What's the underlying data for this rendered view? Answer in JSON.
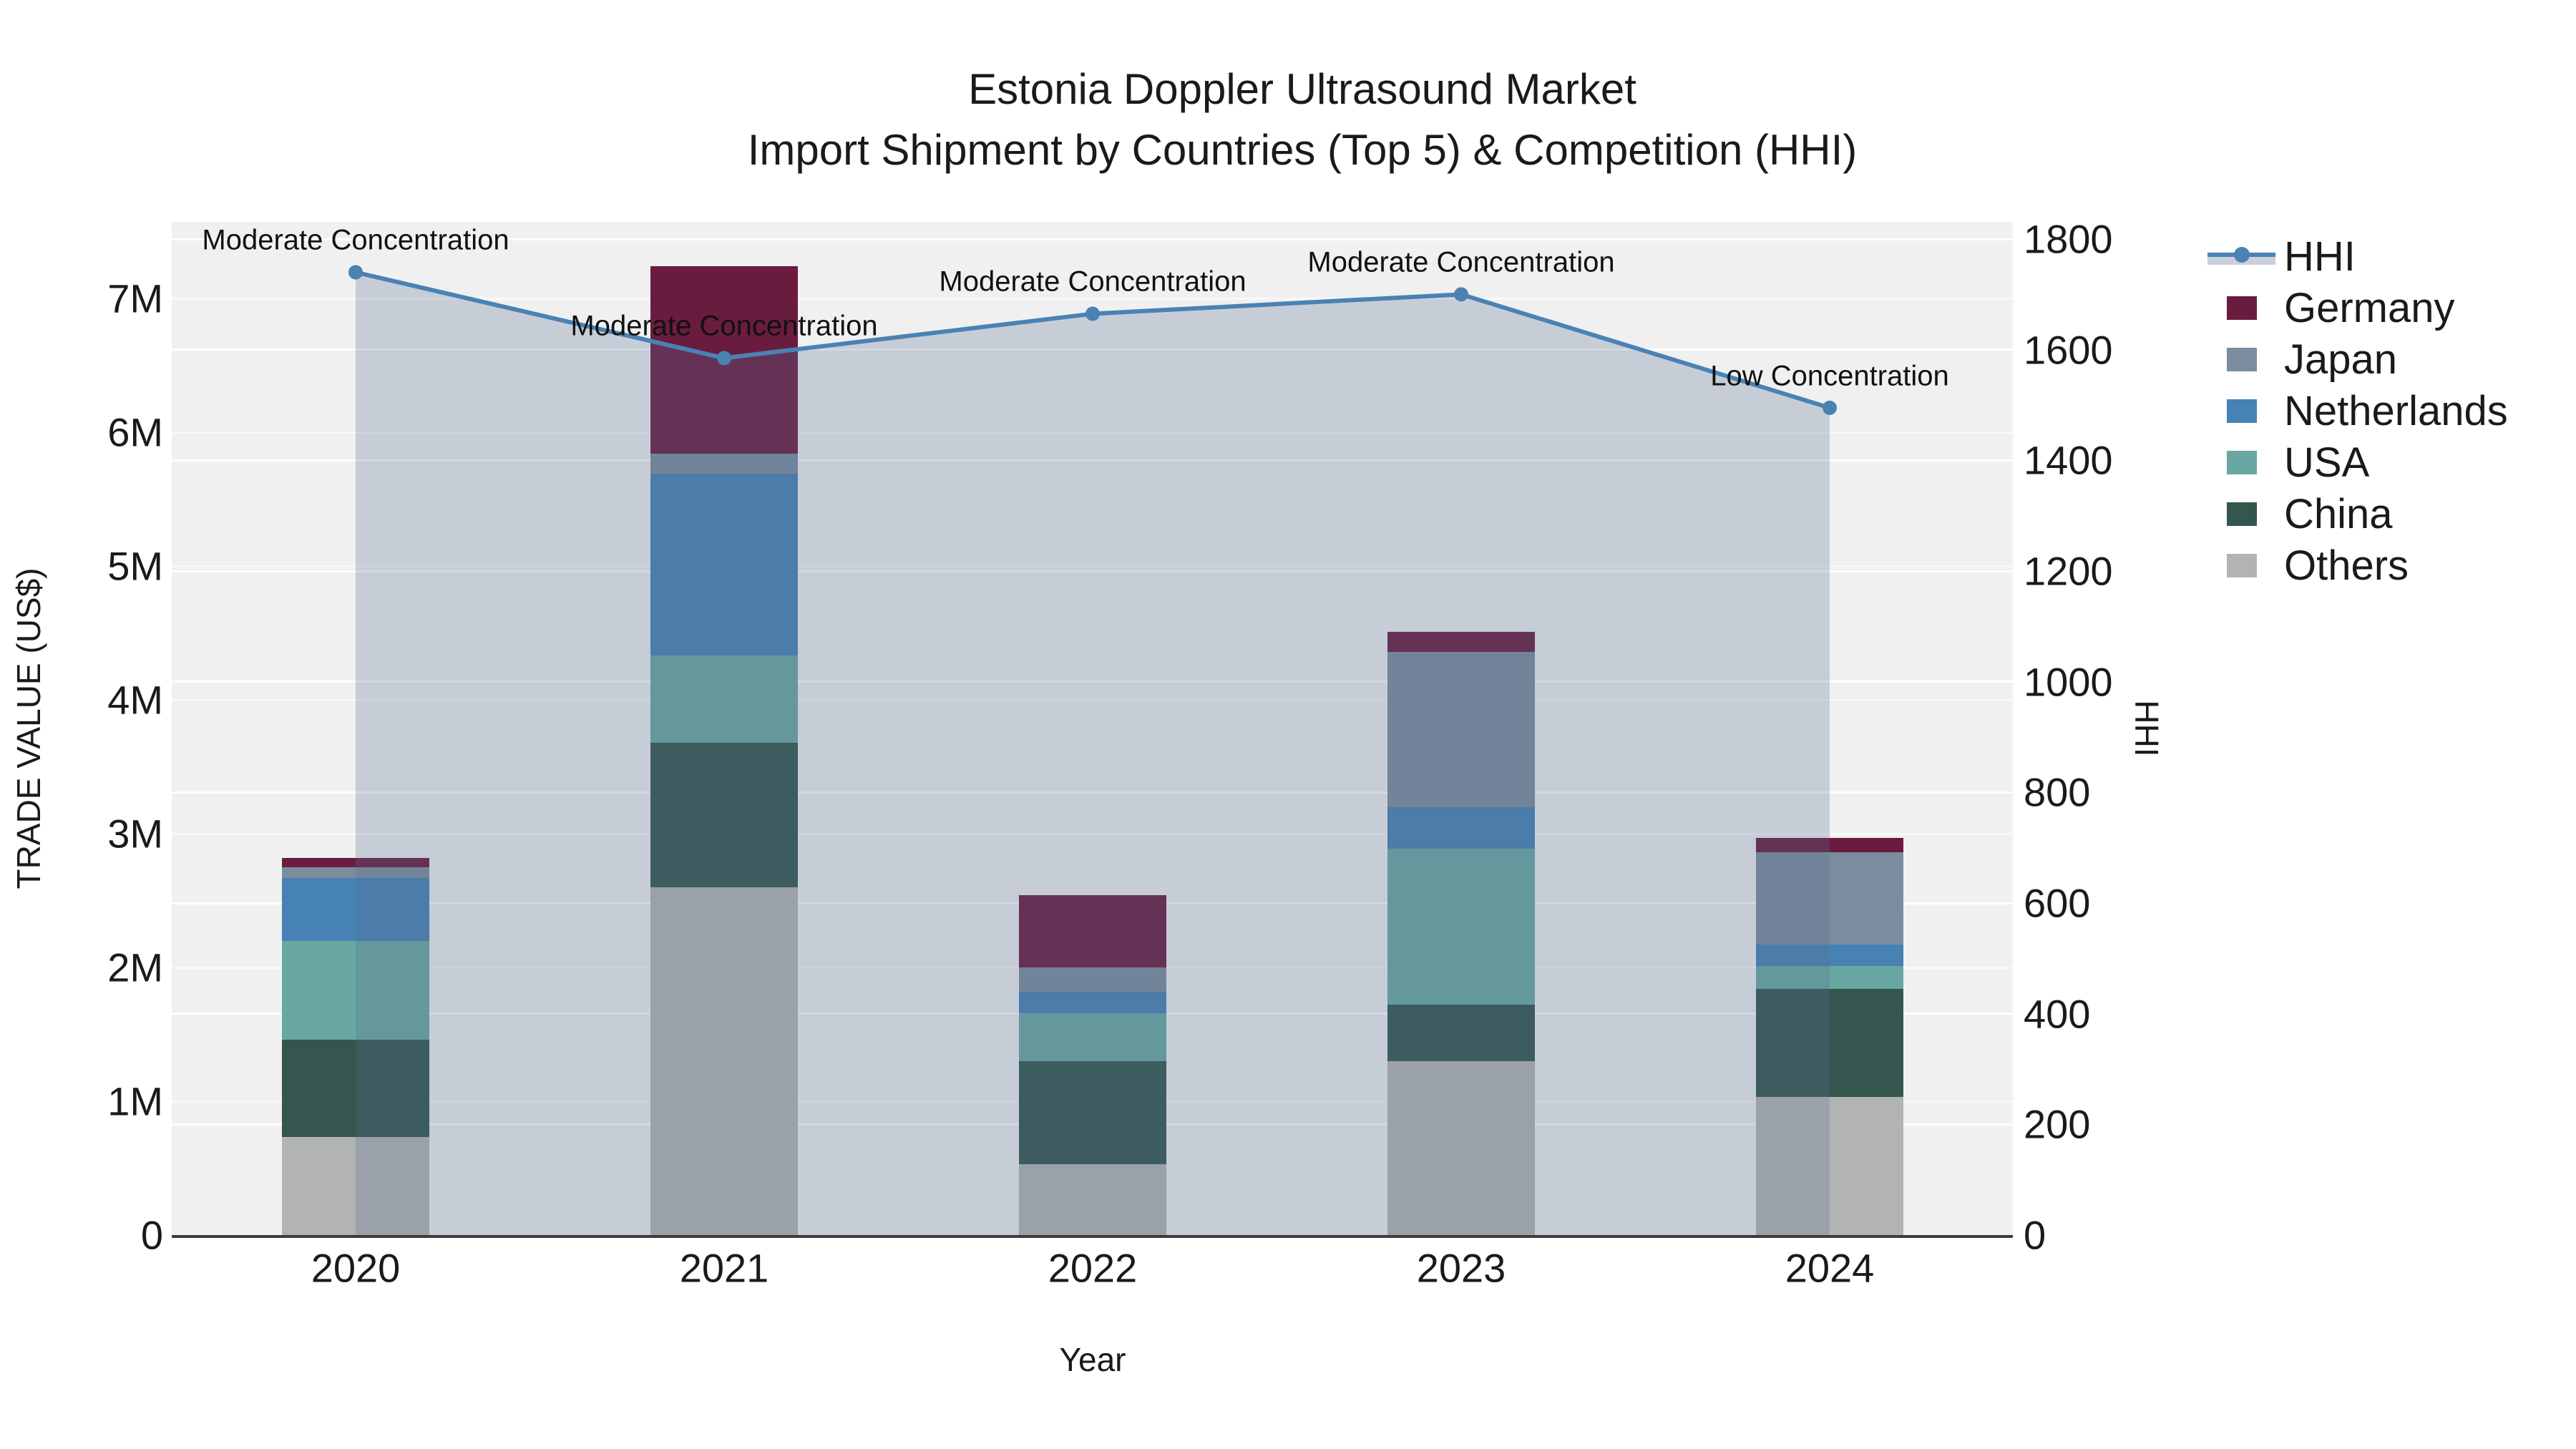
{
  "title": {
    "line1": "Estonia Doppler Ultrasound Market",
    "line2": "Import Shipment by Countries (Top 5) & Competition (HHI)"
  },
  "chart_data": {
    "type": "combo_stacked_bar_line",
    "categories": [
      "2020",
      "2021",
      "2022",
      "2023",
      "2024"
    ],
    "bar_unit": "US$ millions",
    "series": [
      {
        "name": "Others",
        "color": "#b2b4b3",
        "values": [
          0.73,
          2.6,
          0.53,
          1.3,
          1.03
        ]
      },
      {
        "name": "China",
        "color": "#34564f",
        "values": [
          0.73,
          1.08,
          0.77,
          0.42,
          0.81
        ]
      },
      {
        "name": "USA",
        "color": "#69a8a2",
        "values": [
          0.74,
          0.65,
          0.36,
          1.17,
          0.17
        ]
      },
      {
        "name": "Netherlands",
        "color": "#4682b4",
        "values": [
          0.47,
          1.36,
          0.16,
          0.31,
          0.16
        ]
      },
      {
        "name": "Japan",
        "color": "#7b8c9e",
        "values": [
          0.08,
          0.15,
          0.18,
          1.16,
          0.69
        ]
      },
      {
        "name": "Germany",
        "color": "#6a1c3f",
        "values": [
          0.07,
          1.4,
          0.54,
          0.15,
          0.11
        ]
      }
    ],
    "hhi_line": {
      "name": "HHI",
      "color": "#4a82b4",
      "area_fill": "rgba(88,110,144,0.27)",
      "values": [
        1740,
        1585,
        1665,
        1700,
        1495
      ],
      "annotations": [
        "Moderate Concentration",
        "Moderate Concentration",
        "Moderate Concentration",
        "Moderate Concentration",
        "Low Concentration"
      ]
    },
    "left_axis": {
      "label": "TRADE VALUE (US$)",
      "tick_values": [
        0,
        1,
        2,
        3,
        4,
        5,
        6,
        7
      ],
      "tick_labels": [
        "0",
        "1M",
        "2M",
        "3M",
        "4M",
        "5M",
        "6M",
        "7M"
      ],
      "ylim": [
        0,
        7.57
      ]
    },
    "right_axis": {
      "label": "HHI",
      "tick_values": [
        0,
        200,
        400,
        600,
        800,
        1000,
        1200,
        1400,
        1600,
        1800
      ],
      "tick_labels": [
        "0",
        "200",
        "400",
        "600",
        "800",
        "1000",
        "1200",
        "1400",
        "1600",
        "1800"
      ],
      "ylim": [
        0,
        1831
      ]
    },
    "xlabel": "Year",
    "plot_background": "#f0f0f1",
    "grid": true
  },
  "legend": {
    "entries": [
      {
        "label": "HHI",
        "type": "line",
        "color": "#4a82b4"
      },
      {
        "label": "Germany",
        "type": "patch",
        "color": "#6a1c3f"
      },
      {
        "label": "Japan",
        "type": "patch",
        "color": "#7b8c9e"
      },
      {
        "label": "Netherlands",
        "type": "patch",
        "color": "#4682b4"
      },
      {
        "label": "USA",
        "type": "patch",
        "color": "#69a8a2"
      },
      {
        "label": "China",
        "type": "patch",
        "color": "#34564f"
      },
      {
        "label": "Others",
        "type": "patch",
        "color": "#b2b4b3"
      }
    ]
  }
}
